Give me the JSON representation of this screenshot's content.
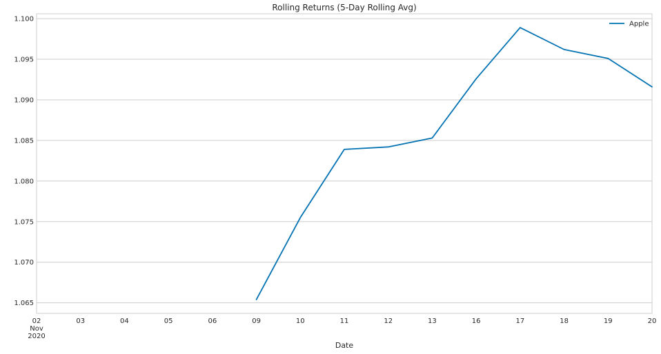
{
  "chart_data": {
    "type": "line",
    "title": "Rolling Returns (5-Day Rolling Avg)",
    "xlabel": "Date",
    "ylabel": "",
    "x_tick_labels": [
      {
        "day": "02",
        "month": "Nov",
        "year": "2020"
      },
      {
        "day": "03"
      },
      {
        "day": "04"
      },
      {
        "day": "05"
      },
      {
        "day": "06"
      },
      {
        "day": "09"
      },
      {
        "day": "10"
      },
      {
        "day": "11"
      },
      {
        "day": "12"
      },
      {
        "day": "13"
      },
      {
        "day": "16"
      },
      {
        "day": "17"
      },
      {
        "day": "18"
      },
      {
        "day": "19"
      },
      {
        "day": "20"
      }
    ],
    "x": [
      "2020-11-02",
      "2020-11-03",
      "2020-11-04",
      "2020-11-05",
      "2020-11-06",
      "2020-11-09",
      "2020-11-10",
      "2020-11-11",
      "2020-11-12",
      "2020-11-13",
      "2020-11-16",
      "2020-11-17",
      "2020-11-18",
      "2020-11-19",
      "2020-11-20"
    ],
    "series": [
      {
        "name": "Apple",
        "color": "#0072b2",
        "values": [
          null,
          null,
          null,
          null,
          null,
          1.0654,
          1.0755,
          1.0839,
          1.0842,
          1.0853,
          1.0926,
          1.0989,
          1.0962,
          1.0951,
          1.0916
        ]
      }
    ],
    "ylim": [
      1.0637,
      1.1006
    ],
    "y_ticks": [
      "1.065",
      "1.070",
      "1.075",
      "1.080",
      "1.085",
      "1.090",
      "1.095",
      "1.100"
    ],
    "grid": "horizontal",
    "legend": "top-right"
  }
}
